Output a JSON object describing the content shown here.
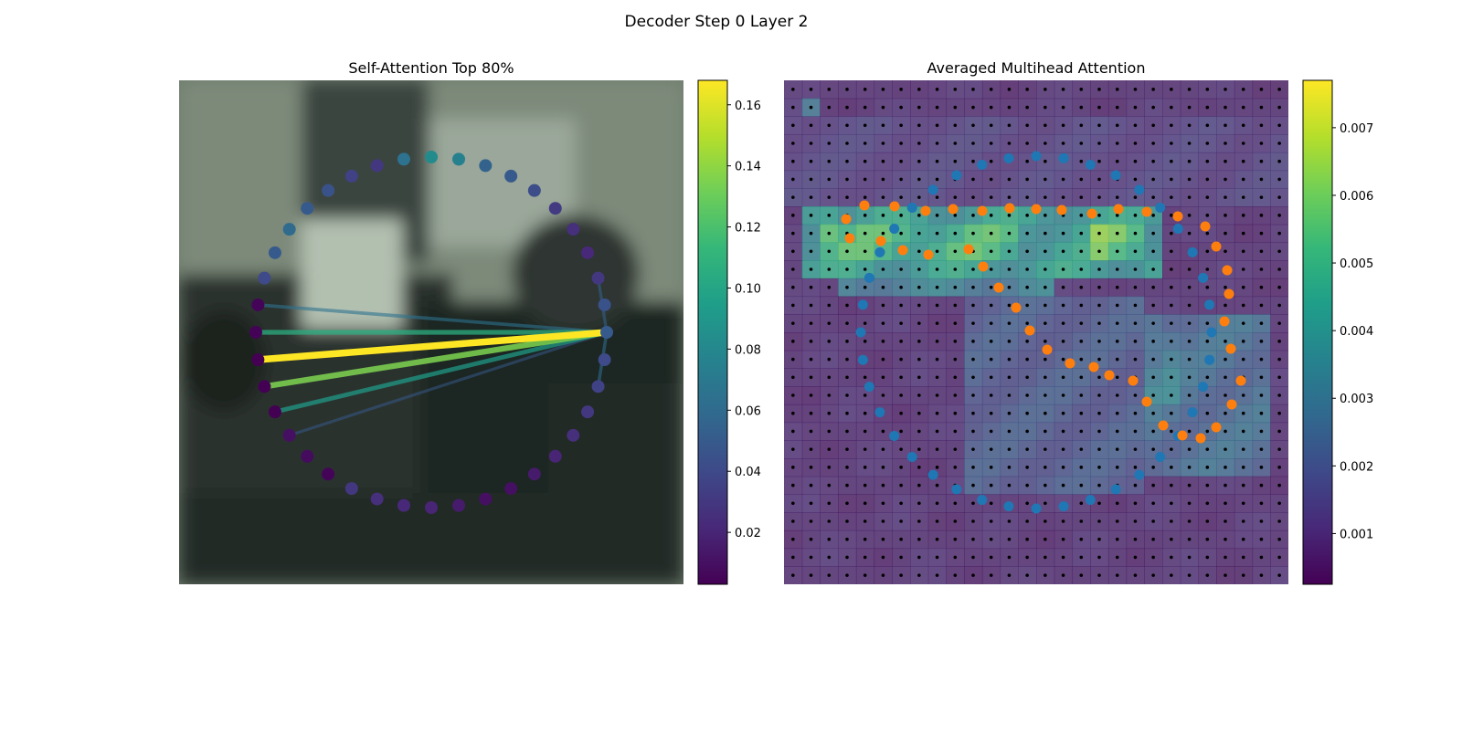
{
  "figure": {
    "suptitle": "Decoder Step 0 Layer 2"
  },
  "colormap": [
    "#440154",
    "#482878",
    "#3e4989",
    "#31688e",
    "#26828e",
    "#1f9e89",
    "#35b779",
    "#6ece58",
    "#b5de2b",
    "#fde725"
  ],
  "chart_data": [
    {
      "type": "scatter",
      "title": "Self-Attention Top 80%",
      "description_of_marks": "ring of points colored by attention weight; lines from the query point to its top-80% attended points",
      "n_points": 40,
      "query_index": 10,
      "point_weights": [
        0.082,
        0.075,
        0.055,
        0.05,
        0.042,
        0.032,
        0.025,
        0.022,
        0.03,
        0.045,
        0.05,
        0.04,
        0.036,
        0.03,
        0.025,
        0.02,
        0.015,
        0.01,
        0.01,
        0.015,
        0.02,
        0.022,
        0.025,
        0.03,
        0.005,
        0.008,
        0.01,
        0.003,
        0.002,
        0.003,
        0.004,
        0.005,
        0.04,
        0.05,
        0.06,
        0.05,
        0.045,
        0.035,
        0.03,
        0.065
      ],
      "links": [
        {
          "to": 26,
          "weight": 0.05
        },
        {
          "to": 27,
          "weight": 0.095
        },
        {
          "to": 28,
          "weight": 0.135
        },
        {
          "to": 29,
          "weight": 0.168
        },
        {
          "to": 30,
          "weight": 0.105
        },
        {
          "to": 31,
          "weight": 0.065
        },
        {
          "to": 12,
          "weight": 0.06
        },
        {
          "to": 8,
          "weight": 0.055
        }
      ],
      "colorbar": {
        "vmin": 0.003,
        "vmax": 0.168,
        "ticks": [
          0.02,
          0.04,
          0.06,
          0.08,
          0.1,
          0.12,
          0.14,
          0.16
        ],
        "tick_labels": [
          "0.02",
          "0.04",
          "0.06",
          "0.08",
          "0.10",
          "0.12",
          "0.14",
          "0.16"
        ]
      }
    },
    {
      "type": "heatmap",
      "title": "Averaged Multihead Attention",
      "grid_size": 28,
      "hot_regions": [
        {
          "row0": 7,
          "row1": 10,
          "col0": 1,
          "col1": 20,
          "value": 0.0048
        },
        {
          "row0": 8,
          "row1": 9,
          "col0": 2,
          "col1": 12,
          "value": 0.0058
        },
        {
          "row0": 8,
          "row1": 9,
          "col0": 17,
          "col1": 19,
          "value": 0.0065
        },
        {
          "row0": 8,
          "row1": 8,
          "col0": 2,
          "col1": 2,
          "value": 0.0077
        },
        {
          "row0": 7,
          "row1": 7,
          "col0": 2,
          "col1": 2,
          "value": 0.006
        },
        {
          "row0": 1,
          "row1": 1,
          "col0": 1,
          "col1": 1,
          "value": 0.0035
        },
        {
          "row0": 10,
          "row1": 11,
          "col0": 3,
          "col1": 14,
          "value": 0.0035
        },
        {
          "row0": 13,
          "row1": 21,
          "col0": 20,
          "col1": 26,
          "value": 0.0028
        },
        {
          "row0": 14,
          "row1": 17,
          "col0": 20,
          "col1": 21,
          "value": 0.0036
        },
        {
          "row0": 12,
          "row1": 22,
          "col0": 10,
          "col1": 19,
          "value": 0.0022
        },
        {
          "row0": 2,
          "row1": 6,
          "col0": 0,
          "col1": 27,
          "value": 0.0014
        }
      ],
      "base_value": 0.0009,
      "reference_points_blue": 40,
      "predicted_points_orange": 40,
      "colorbar": {
        "vmin": 0.00025,
        "vmax": 0.0077,
        "ticks": [
          0.001,
          0.002,
          0.003,
          0.004,
          0.005,
          0.006,
          0.007
        ],
        "tick_labels": [
          "0.001",
          "0.002",
          "0.003",
          "0.004",
          "0.005",
          "0.006",
          "0.007"
        ]
      }
    }
  ]
}
